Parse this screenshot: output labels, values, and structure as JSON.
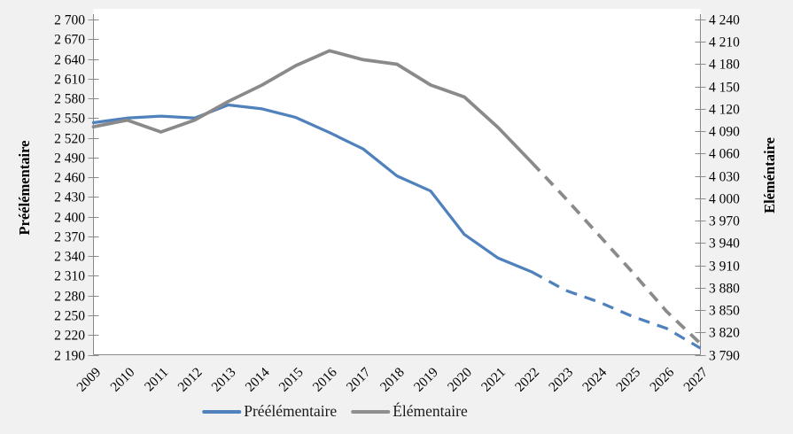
{
  "chart_data": {
    "type": "line",
    "title": "",
    "background": "#f1f1f1",
    "plot_background": "#ffffff",
    "grid": false,
    "categories": [
      "2009",
      "2010",
      "2011",
      "2012",
      "2013",
      "2014",
      "2015",
      "2016",
      "2017",
      "2018",
      "2019",
      "2020",
      "2021",
      "2022",
      "2023",
      "2024",
      "2025",
      "2026",
      "2027"
    ],
    "series": [
      {
        "name": "Préélémentaire",
        "axis": "left",
        "color": "#4f81bd",
        "values": [
          2543,
          2550,
          2553,
          2550,
          2570,
          2564,
          2551,
          2528,
          2503,
          2462,
          2439,
          2373,
          2337,
          2316,
          2288,
          2270,
          2248,
          2230,
          2200
        ]
      },
      {
        "name": "Eléméntaire",
        "axis": "right",
        "color": "#8a8a8a",
        "values": [
          4096,
          4105,
          4089,
          4105,
          4130,
          4152,
          4178,
          4198,
          4186,
          4180,
          4152,
          4136,
          4095,
          4048,
          4000,
          3950,
          3900,
          3848,
          3805
        ]
      }
    ],
    "dashed_from_index": 13,
    "dashed_note": "values from 2022 onward are projections drawn with dashed strokes",
    "left_axis": {
      "label": "Préélémentaire",
      "range": [
        2190,
        2700
      ],
      "tick_step": 30,
      "tick_labels": [
        "2 190",
        "2 220",
        "2 250",
        "2 280",
        "2 310",
        "2 340",
        "2 370",
        "2 400",
        "2 430",
        "2 460",
        "2 490",
        "2 520",
        "2 550",
        "2 580",
        "2 610",
        "2 640",
        "2 670",
        "2 700"
      ]
    },
    "right_axis": {
      "label": "Eléméntaire",
      "range": [
        3790,
        4240
      ],
      "tick_step": 30,
      "tick_labels": [
        "3 790",
        "3 820",
        "3 850",
        "3 880",
        "3 910",
        "3 940",
        "3 970",
        "4 000",
        "4 030",
        "4 060",
        "4 090",
        "4 120",
        "4 150",
        "4 180",
        "4 210",
        "4 240"
      ]
    },
    "x_axis": {
      "label": "",
      "rotation_deg": -45
    },
    "legend": {
      "position": "bottom",
      "entries": [
        {
          "label": "Préélémentaire",
          "color": "#4f81bd"
        },
        {
          "label": "Élémentaire",
          "color": "#8f8f8f"
        }
      ]
    }
  }
}
